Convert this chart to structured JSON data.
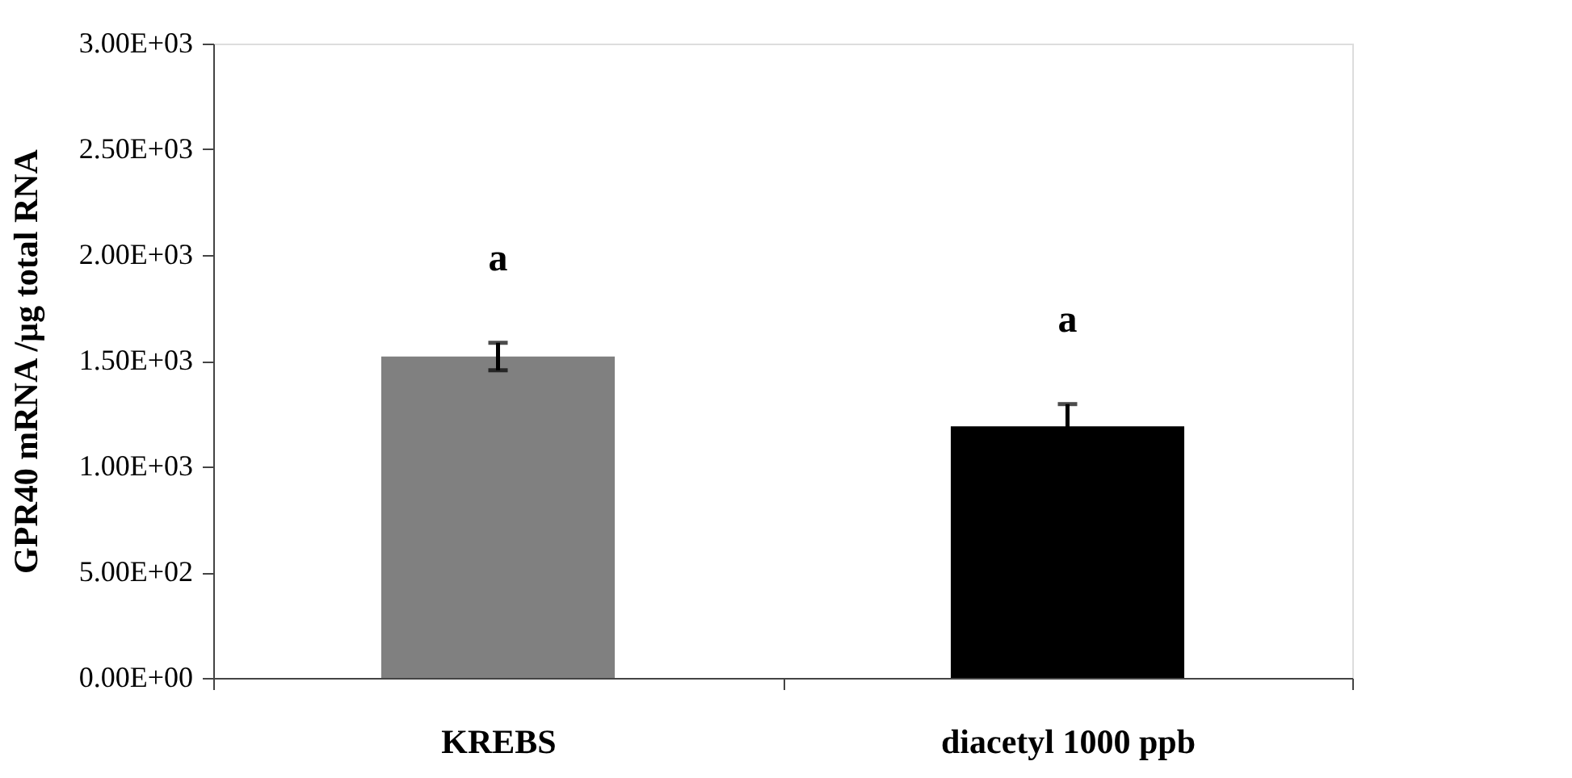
{
  "chart_data": {
    "type": "bar",
    "ylabel": "GPR40 mRNA /µg total RNA",
    "categories": [
      "KREBS",
      "diacetyl 1000 ppb"
    ],
    "values": [
      1520,
      1190
    ],
    "colors": [
      "#808080",
      "#000000"
    ],
    "errors": [
      65,
      105
    ],
    "ylim": [
      0,
      3000
    ],
    "yticks": [
      {
        "value": 0,
        "label": "0.00E+00"
      },
      {
        "value": 500,
        "label": "5.00E+02"
      },
      {
        "value": 1000,
        "label": "1.00E+03"
      },
      {
        "value": 1500,
        "label": "1.50E+03"
      },
      {
        "value": 2000,
        "label": "2.00E+03"
      },
      {
        "value": 2500,
        "label": "2.50E+03"
      },
      {
        "value": 3000,
        "label": "3.00E+03"
      }
    ],
    "annotations": [
      "a",
      "a"
    ],
    "grid": false,
    "legend": false
  }
}
